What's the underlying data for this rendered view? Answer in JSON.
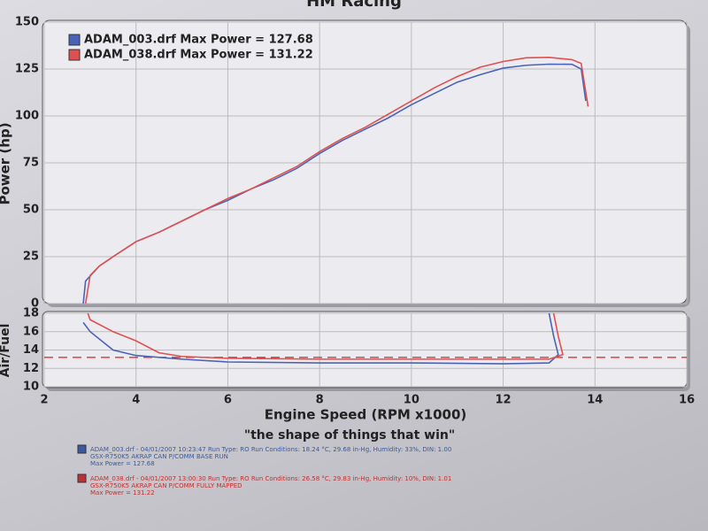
{
  "chart_data": [
    {
      "type": "line",
      "title": "HM Racing",
      "ylabel": "Power (hp)",
      "xlim": [
        2,
        16
      ],
      "ylim": [
        0,
        150
      ],
      "yticks": [
        0,
        25,
        50,
        75,
        100,
        125,
        150
      ],
      "grid": true,
      "series": [
        {
          "name": "ADAM_003.drf Max Power = 127.68",
          "color": "#4a63b8",
          "x": [
            2.85,
            2.9,
            3.2,
            3.5,
            4,
            4.5,
            5,
            5.5,
            6,
            6.5,
            7,
            7.5,
            8,
            8.5,
            9,
            9.5,
            10,
            10.5,
            11,
            11.5,
            12,
            12.5,
            13,
            13.5,
            13.7,
            13.8
          ],
          "values": [
            0,
            12,
            20,
            25,
            33,
            38,
            44,
            50,
            55,
            61,
            66,
            72,
            80,
            87,
            93,
            99,
            106,
            112,
            118,
            122,
            125.5,
            127,
            127.6,
            127.5,
            125,
            108
          ]
        },
        {
          "name": "ADAM_038.drf Max Power = 131.22",
          "color": "#e05050",
          "x": [
            2.9,
            3.0,
            3.2,
            3.5,
            4,
            4.5,
            5,
            5.5,
            6,
            6.5,
            7,
            7.5,
            8,
            8.5,
            9,
            9.5,
            10,
            10.5,
            11,
            11.5,
            12,
            12.5,
            13,
            13.5,
            13.7,
            13.85
          ],
          "values": [
            0,
            15,
            20,
            25,
            33,
            38,
            44,
            50,
            56,
            61,
            67,
            73,
            81,
            88,
            94,
            101,
            108,
            115,
            121,
            126,
            129,
            131,
            131.2,
            130,
            128,
            105
          ]
        }
      ]
    },
    {
      "type": "line",
      "ylabel": "Air/Fuel",
      "xlabel": "Engine Speed (RPM x1000)",
      "subtitle": "\"the shape of things that win\"",
      "xlim": [
        2,
        16
      ],
      "xticks": [
        2,
        4,
        6,
        8,
        10,
        12,
        14,
        16
      ],
      "ylim": [
        10,
        18
      ],
      "yticks": [
        10,
        12,
        14,
        16,
        18
      ],
      "grid": true,
      "reference_line": 13.2,
      "reference_color": "#e03030",
      "series": [
        {
          "name": "ADAM_003.drf",
          "color": "#4a63b8",
          "x": [
            2.85,
            3,
            3.5,
            4,
            5,
            6,
            8,
            10,
            12,
            13,
            13.2,
            13.1,
            13.0
          ],
          "values": [
            17,
            16,
            14,
            13.4,
            13.0,
            12.7,
            12.6,
            12.6,
            12.5,
            12.6,
            13.5,
            15.5,
            18
          ]
        },
        {
          "name": "ADAM_038.drf",
          "color": "#e05050",
          "x": [
            2.95,
            3.0,
            3.5,
            4,
            4.5,
            5,
            6,
            8,
            10,
            12,
            13,
            13.3,
            13.2,
            13.1
          ],
          "values": [
            18,
            17.3,
            16,
            15,
            13.7,
            13.3,
            13.1,
            13.0,
            13.0,
            13.0,
            13.0,
            13.5,
            15.5,
            18
          ]
        }
      ]
    }
  ],
  "footer": [
    {
      "color": "#3a5aa0",
      "lines": [
        "ADAM_003.drf - 04/01/2007 10:23:47   Run Type: RO   Run Conditions: 18.24 °C, 29.68 in-Hg,  Humidity: 33%, DIN: 1.00",
        "GSX-R750K5 AKRAP CAN P/COMM BASE RUN",
        "Max Power = 127.68"
      ]
    },
    {
      "color": "#c03030",
      "lines": [
        "ADAM_038.drf - 04/01/2007 13:00:30   Run Type: RO   Run Conditions: 26.58 °C, 29.83 in-Hg,  Humidity: 10%, DIN: 1.01",
        "GSX-R750K5 AKRAP CAN P/COMM FULLY MAPPED",
        "Max Power = 131.22"
      ]
    }
  ]
}
